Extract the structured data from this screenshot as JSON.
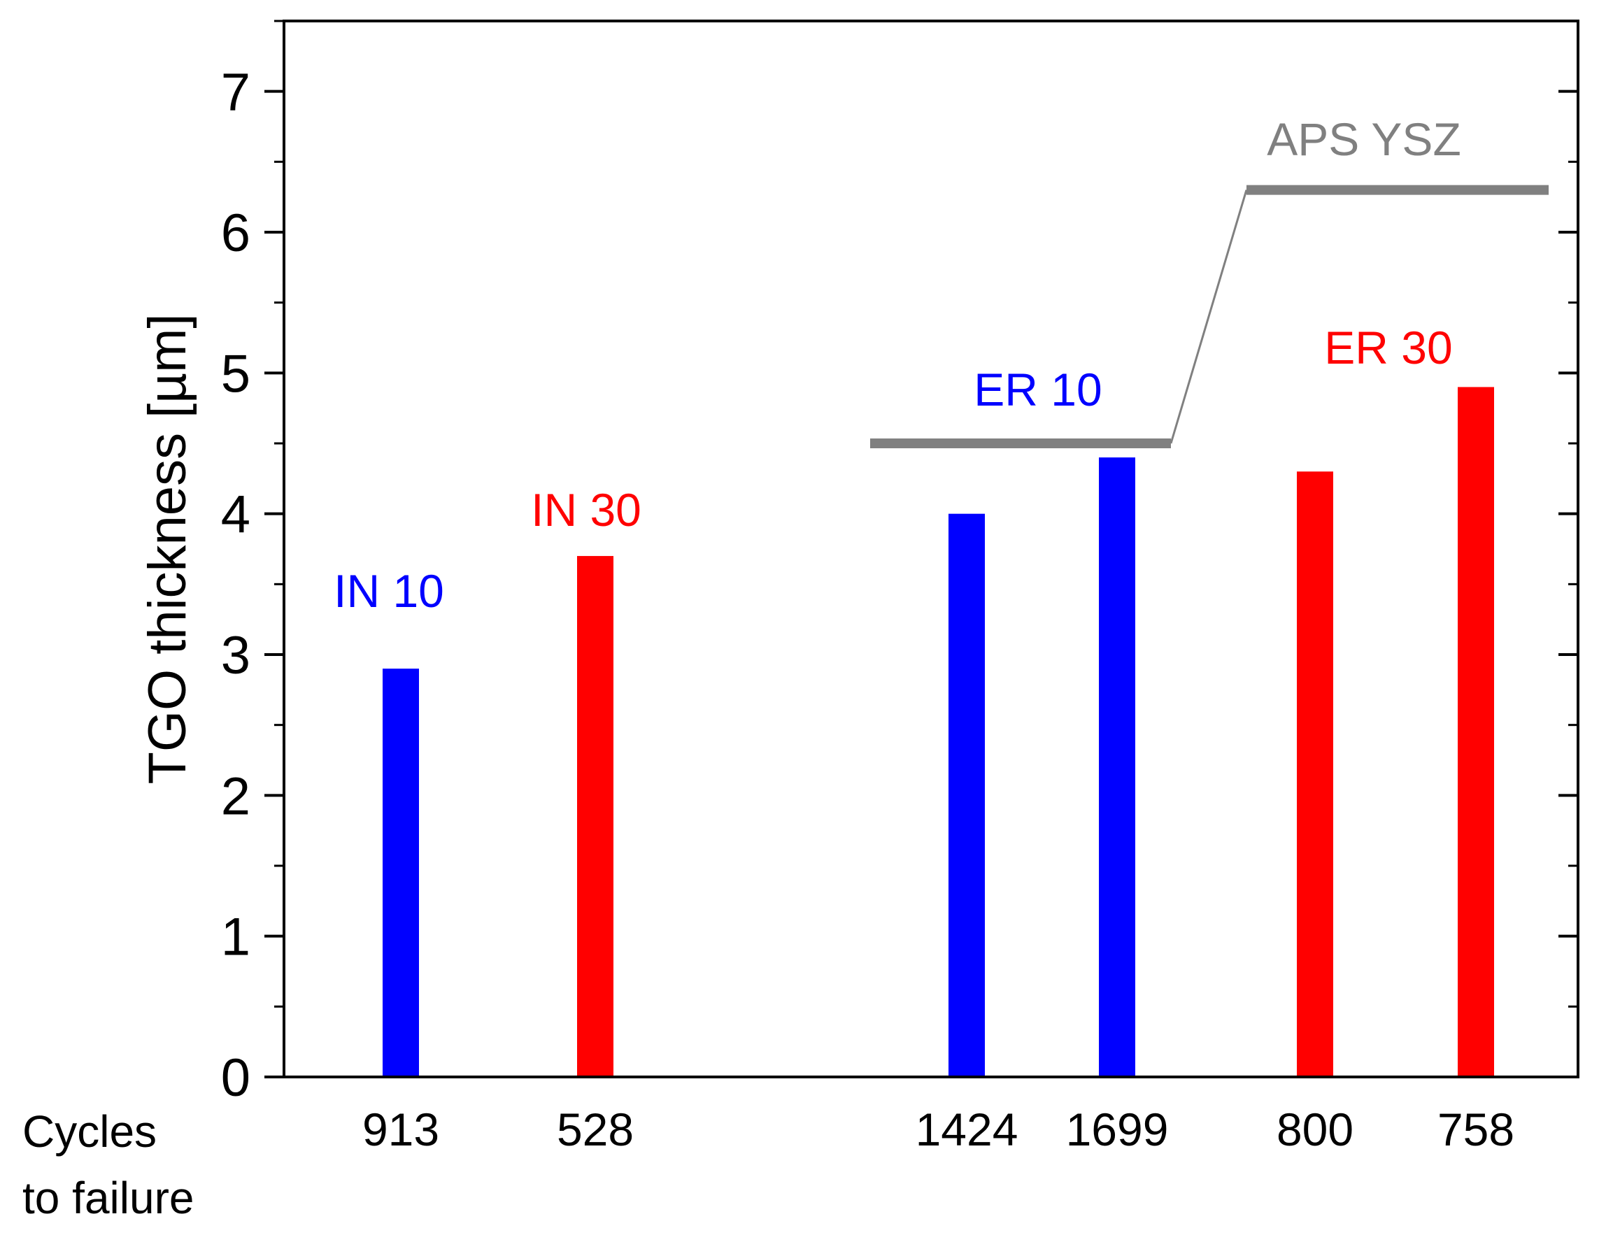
{
  "chart_data": {
    "type": "bar",
    "ylabel": "TGO thickness [µm]",
    "ylim": [
      0,
      7.5
    ],
    "yticks": [
      0,
      1,
      2,
      3,
      4,
      5,
      6,
      7
    ],
    "x_row_label": [
      "Cycles",
      "to failure"
    ],
    "categories": [
      "913",
      "528",
      "1424",
      "1699",
      "800",
      "758"
    ],
    "values": [
      2.9,
      3.7,
      4.0,
      4.4,
      4.3,
      4.9
    ],
    "bar_colors": [
      "#0000ff",
      "#ff0000",
      "#0000ff",
      "#0000ff",
      "#ff0000",
      "#ff0000"
    ],
    "group_labels": [
      {
        "text": "IN 10",
        "color": "#0000ff"
      },
      {
        "text": "IN 30",
        "color": "#ff0000"
      },
      {
        "text": "ER 10",
        "color": "#0000ff"
      },
      {
        "text": "ER 30",
        "color": "#ff0000"
      }
    ],
    "reference": {
      "label": "APS YSZ",
      "color": "#808080",
      "er10_level": 4.5,
      "er30_level": 6.3
    }
  }
}
